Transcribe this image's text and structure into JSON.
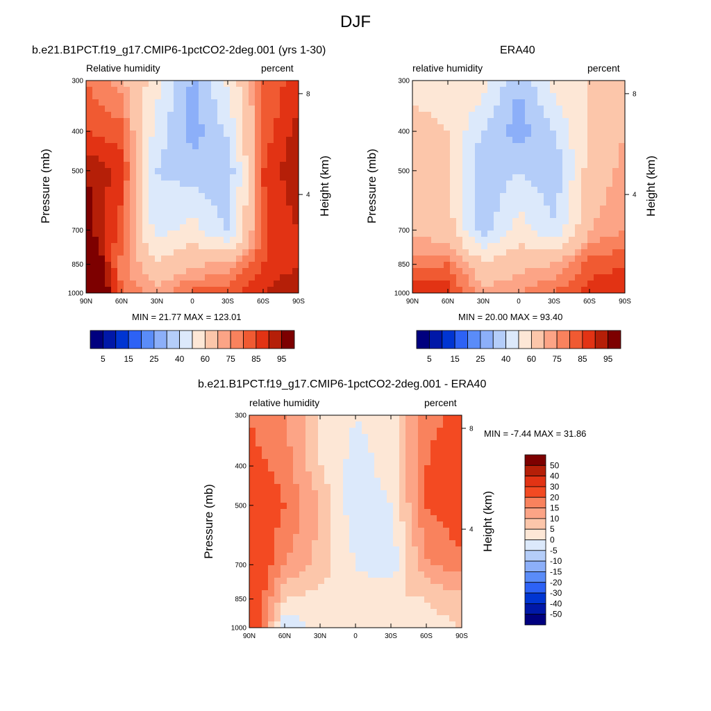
{
  "figure": {
    "title": "DJF"
  },
  "panels": {
    "model": {
      "title": "b.e21.B1PCT.f19_g17.CMIP6-1pctCO2-2deg.001 (yrs 1-30)",
      "left_string": "Relative humidity",
      "right_string": "percent",
      "ylabel": "Pressure (mb)",
      "ylabel_right": "Height (km)",
      "min_max": "MIN =  21.77  MAX = 123.01"
    },
    "obs": {
      "title": "ERA40",
      "left_string": "relative humidity",
      "right_string": "percent",
      "ylabel": "Pressure (mb)",
      "ylabel_right": "Height (km)",
      "min_max": "MIN =  20.00  MAX = 93.40"
    },
    "diff": {
      "title": "b.e21.B1PCT.f19_g17.CMIP6-1pctCO2-2deg.001 - ERA40",
      "left_string": "relative humidity",
      "right_string": "percent",
      "ylabel": "Pressure (mb)",
      "ylabel_right": "Height (km)",
      "min_max": "MIN =  -7.44  MAX =  31.86"
    }
  },
  "axes": {
    "pressure_ticks": [
      "300",
      "400",
      "500",
      "700",
      "850",
      "1000"
    ],
    "pressure_values": [
      300,
      400,
      500,
      700,
      850,
      1000
    ],
    "height_ticks": [
      "8",
      "4"
    ],
    "height_values_km": [
      8,
      4
    ],
    "lat_ticks": [
      "90N",
      "60N",
      "30N",
      "0",
      "30S",
      "60S",
      "90S"
    ],
    "lat_values": [
      90,
      60,
      30,
      0,
      -30,
      -60,
      -90
    ],
    "pressure_range": [
      300,
      1000
    ],
    "lat_range": [
      90,
      -90
    ],
    "pressure_scale": "log"
  },
  "colorbars": {
    "abs": {
      "labels": [
        "5",
        "15",
        "25",
        "40",
        "60",
        "75",
        "85",
        "95"
      ],
      "colors": [
        "#00007f",
        "#0018a8",
        "#0035d2",
        "#2d62f5",
        "#5a8cf8",
        "#8caff9",
        "#b4cdf9",
        "#dce9fb",
        "#fde7d6",
        "#fcc6aa",
        "#fca486",
        "#f9825d",
        "#f05a32",
        "#e23314",
        "#b51f08",
        "#7d0000"
      ]
    },
    "diff": {
      "labels": [
        "50",
        "40",
        "30",
        "20",
        "15",
        "10",
        "5",
        "0",
        "-5",
        "-10",
        "-15",
        "-20",
        "-30",
        "-40",
        "-50"
      ],
      "colors": [
        "#7d0000",
        "#b51f08",
        "#e23314",
        "#f34a22",
        "#f9825d",
        "#fca486",
        "#fcc6aa",
        "#fde7d6",
        "#dce9fb",
        "#b4cdf9",
        "#8caff9",
        "#5a8cf8",
        "#2d62f5",
        "#0035d2",
        "#0018a8",
        "#00007f"
      ]
    }
  },
  "chart_data": [
    {
      "type": "heatmap",
      "title": "b.e21.B1PCT.f19_g17.CMIP6-1pctCO2-2deg.001 (yrs 1-30)",
      "variable": "Relative humidity",
      "units": "percent",
      "xlabel": "",
      "ylabel": "Pressure (mb)",
      "ylabel_right": "Height (km)",
      "x": [
        90,
        60,
        30,
        0,
        -30,
        -60,
        -90
      ],
      "y": [
        300,
        400,
        500,
        700,
        850,
        1000
      ],
      "values": [
        [
          80,
          72,
          55,
          28,
          52,
          80,
          88
        ],
        [
          85,
          82,
          45,
          25,
          42,
          82,
          92
        ],
        [
          95,
          88,
          40,
          35,
          32,
          85,
          95
        ],
        [
          98,
          82,
          45,
          55,
          38,
          84,
          90
        ],
        [
          110,
          78,
          62,
          68,
          72,
          85,
          90
        ],
        [
          123,
          80,
          72,
          82,
          82,
          90,
          95
        ]
      ],
      "levels": [
        5,
        10,
        15,
        20,
        25,
        30,
        40,
        50,
        60,
        70,
        75,
        80,
        85,
        90,
        95
      ],
      "min": 21.77,
      "max": 123.01
    },
    {
      "type": "heatmap",
      "title": "ERA40",
      "variable": "relative humidity",
      "units": "percent",
      "xlabel": "",
      "ylabel": "Pressure (mb)",
      "ylabel_right": "Height (km)",
      "x": [
        90,
        60,
        30,
        0,
        -30,
        -60,
        -90
      ],
      "y": [
        300,
        400,
        500,
        700,
        850,
        1000
      ],
      "values": [
        [
          58,
          58,
          55,
          30,
          55,
          60,
          65
        ],
        [
          62,
          60,
          40,
          25,
          40,
          62,
          70
        ],
        [
          65,
          62,
          30,
          40,
          32,
          65,
          72
        ],
        [
          68,
          65,
          35,
          55,
          42,
          70,
          75
        ],
        [
          78,
          80,
          62,
          68,
          70,
          82,
          85
        ],
        [
          90,
          88,
          72,
          75,
          80,
          88,
          90
        ]
      ],
      "levels": [
        5,
        10,
        15,
        20,
        25,
        30,
        40,
        50,
        60,
        70,
        75,
        80,
        85,
        90,
        95
      ],
      "min": 20.0,
      "max": 93.4
    },
    {
      "type": "heatmap",
      "title": "b.e21.B1PCT.f19_g17.CMIP6-1pctCO2-2deg.001 - ERA40",
      "variable": "relative humidity",
      "units": "percent",
      "xlabel": "",
      "ylabel": "Pressure (mb)",
      "ylabel_right": "Height (km)",
      "x": [
        90,
        60,
        30,
        0,
        -30,
        -60,
        -90
      ],
      "y": [
        300,
        400,
        500,
        700,
        850,
        1000
      ],
      "values": [
        [
          20,
          15,
          5,
          0,
          2,
          18,
          22
        ],
        [
          22,
          18,
          5,
          -2,
          2,
          20,
          25
        ],
        [
          28,
          20,
          10,
          -4,
          0,
          20,
          25
        ],
        [
          28,
          15,
          8,
          0,
          -4,
          14,
          18
        ],
        [
          30,
          5,
          3,
          2,
          5,
          5,
          8
        ],
        [
          32,
          -5,
          2,
          5,
          2,
          3,
          5
        ]
      ],
      "levels": [
        -50,
        -40,
        -30,
        -20,
        -15,
        -10,
        -5,
        0,
        5,
        10,
        15,
        20,
        30,
        40,
        50
      ],
      "min": -7.44,
      "max": 31.86
    }
  ]
}
